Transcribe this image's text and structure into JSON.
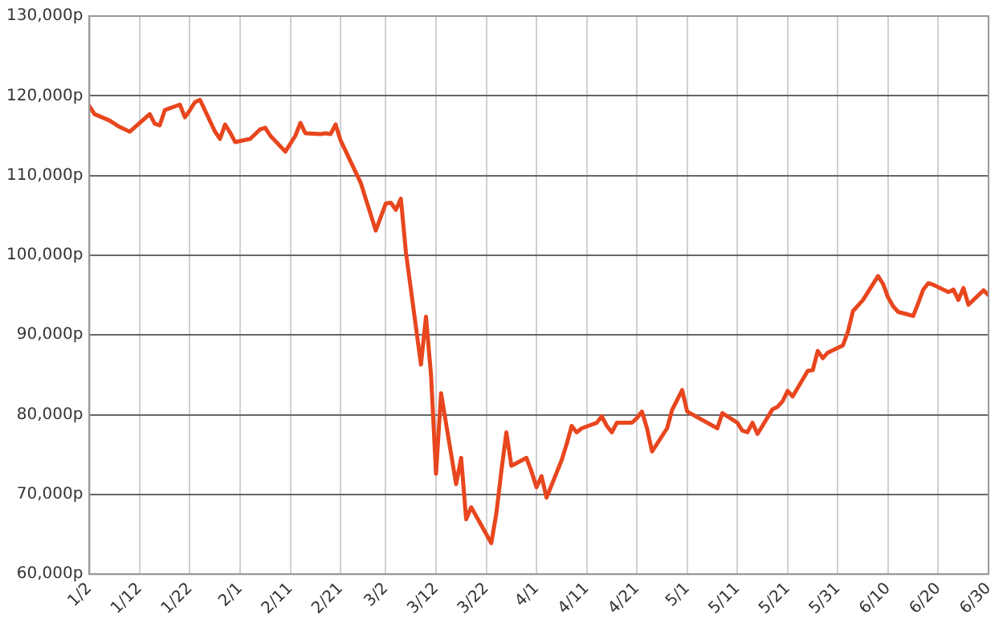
{
  "chart_data": {
    "type": "line",
    "grid": true,
    "marker": "none",
    "line_style": "solid",
    "xlim": [
      "--01-02",
      "--06-30"
    ],
    "xticks": [
      {
        "value": "--01-02",
        "label": "1/2"
      },
      {
        "value": "--01-12",
        "label": "1/12"
      },
      {
        "value": "--01-22",
        "label": "1/22"
      },
      {
        "value": "--02-01",
        "label": "2/1"
      },
      {
        "value": "--02-11",
        "label": "2/11"
      },
      {
        "value": "--02-21",
        "label": "2/21"
      },
      {
        "value": "--03-02",
        "label": "3/2"
      },
      {
        "value": "--03-12",
        "label": "3/12"
      },
      {
        "value": "--03-22",
        "label": "3/22"
      },
      {
        "value": "--04-01",
        "label": "4/1"
      },
      {
        "value": "--04-11",
        "label": "4/11"
      },
      {
        "value": "--04-21",
        "label": "4/21"
      },
      {
        "value": "--05-01",
        "label": "5/1"
      },
      {
        "value": "--05-11",
        "label": "5/11"
      },
      {
        "value": "--05-21",
        "label": "5/21"
      },
      {
        "value": "--05-31",
        "label": "5/31"
      },
      {
        "value": "--06-10",
        "label": "6/10"
      },
      {
        "value": "--06-20",
        "label": "6/20"
      },
      {
        "value": "--06-30",
        "label": "6/30"
      }
    ],
    "ylim": [
      60000,
      130000
    ],
    "yticks": [
      {
        "value": 60000,
        "label": "60,000p"
      },
      {
        "value": 70000,
        "label": "70,000p"
      },
      {
        "value": 80000,
        "label": "80,000p"
      },
      {
        "value": 90000,
        "label": "90,000p"
      },
      {
        "value": 100000,
        "label": "100,000p"
      },
      {
        "value": 110000,
        "label": "110,000p"
      },
      {
        "value": 120000,
        "label": "120,000p"
      },
      {
        "value": 130000,
        "label": "130,000p"
      }
    ],
    "series": [
      {
        "color": "#e8461e",
        "x": [
          "--01-02",
          "--01-03",
          "--01-06",
          "--01-07",
          "--01-08",
          "--01-09",
          "--01-10",
          "--01-14",
          "--01-15",
          "--01-16",
          "--01-17",
          "--01-20",
          "--01-21",
          "--01-22",
          "--01-23",
          "--01-24",
          "--01-27",
          "--01-28",
          "--01-29",
          "--01-30",
          "--01-31",
          "--02-03",
          "--02-04",
          "--02-05",
          "--02-06",
          "--02-07",
          "--02-10",
          "--02-12",
          "--02-13",
          "--02-14",
          "--02-17",
          "--02-18",
          "--02-19",
          "--02-20",
          "--02-21",
          "--02-25",
          "--02-26",
          "--02-27",
          "--02-28",
          "--03-02",
          "--03-03",
          "--03-04",
          "--03-05",
          "--03-06",
          "--03-09",
          "--03-10",
          "--03-11",
          "--03-12",
          "--03-13",
          "--03-16",
          "--03-17",
          "--03-18",
          "--03-19",
          "--03-23",
          "--03-24",
          "--03-25",
          "--03-26",
          "--03-27",
          "--03-30",
          "--03-31",
          "--04-01",
          "--04-02",
          "--04-03",
          "--04-06",
          "--04-07",
          "--04-08",
          "--04-09",
          "--04-10",
          "--04-13",
          "--04-14",
          "--04-15",
          "--04-16",
          "--04-17",
          "--04-20",
          "--04-21",
          "--04-22",
          "--04-23",
          "--04-24",
          "--04-27",
          "--04-28",
          "--04-30",
          "--05-01",
          "--05-07",
          "--05-08",
          "--05-11",
          "--05-12",
          "--05-13",
          "--05-14",
          "--05-15",
          "--05-18",
          "--05-19",
          "--05-20",
          "--05-21",
          "--05-22",
          "--05-25",
          "--05-26",
          "--05-27",
          "--05-28",
          "--05-29",
          "--06-01",
          "--06-02",
          "--06-03",
          "--06-04",
          "--06-05",
          "--06-08",
          "--06-09",
          "--06-10",
          "--06-11",
          "--06-12",
          "--06-15",
          "--06-16",
          "--06-17",
          "--06-18",
          "--06-19",
          "--06-22",
          "--06-23",
          "--06-24",
          "--06-25",
          "--06-26",
          "--06-29",
          "--06-30"
        ],
        "values": [
          118700,
          117700,
          116900,
          116500,
          116100,
          115800,
          115500,
          117700,
          116500,
          116300,
          118200,
          118900,
          117300,
          118200,
          119200,
          119500,
          115500,
          114600,
          116400,
          115400,
          114200,
          114600,
          115200,
          115800,
          116000,
          115000,
          113000,
          115000,
          116600,
          115300,
          115200,
          115300,
          115200,
          116400,
          114400,
          109100,
          107100,
          105100,
          103100,
          106500,
          106600,
          105700,
          107100,
          100400,
          86300,
          92300,
          85000,
          72600,
          82700,
          71300,
          74600,
          66900,
          68400,
          63900,
          67600,
          72900,
          77800,
          73600,
          74600,
          72900,
          70900,
          72300,
          69600,
          74300,
          76300,
          78600,
          77800,
          78300,
          79000,
          79800,
          78600,
          77800,
          79000,
          79000,
          79600,
          80400,
          78300,
          75400,
          78300,
          80600,
          83100,
          80400,
          78300,
          80200,
          79000,
          78000,
          77800,
          79000,
          77600,
          80700,
          81000,
          81700,
          83000,
          82300,
          85500,
          85600,
          88000,
          87100,
          87800,
          88700,
          90400,
          93000,
          93700,
          94400,
          97400,
          96400,
          94700,
          93600,
          92900,
          92400,
          94000,
          95700,
          96500,
          96300,
          95400,
          95700,
          94400,
          95900,
          93800,
          95600,
          95000
        ]
      }
    ]
  }
}
